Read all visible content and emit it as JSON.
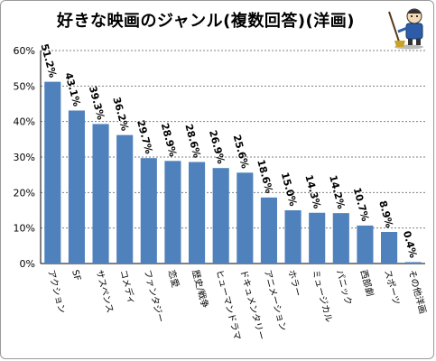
{
  "title": "好きな映画のジャンル(複数回答)(洋画)",
  "chart_data": {
    "type": "bar",
    "title": "好きな映画のジャンル(複数回答)(洋画)",
    "categories": [
      "アクション",
      "SF",
      "サスペンス",
      "コメディ",
      "ファンタジー",
      "恋愛",
      "歴史/戦争",
      "ヒューマンドラマ",
      "ドキュメンタリー",
      "アニメーション",
      "ホラー",
      "ミュージカル",
      "パニック",
      "西部劇",
      "スポーツ",
      "その他洋画"
    ],
    "values": [
      51.2,
      43.1,
      39.3,
      36.2,
      29.7,
      28.9,
      28.6,
      26.9,
      25.6,
      18.6,
      15.0,
      14.3,
      14.2,
      10.7,
      8.9,
      0.4
    ],
    "data_labels": [
      "51.2%",
      "43.1%",
      "39.3%",
      "36.2%",
      "29.7%",
      "28.9%",
      "28.6%",
      "26.9%",
      "25.6%",
      "18.6%",
      "15.0%",
      "14.3%",
      "14.2%",
      "10.7%",
      "8.9%",
      "0.4%"
    ],
    "yticks": [
      "0%",
      "10%",
      "20%",
      "30%",
      "40%",
      "50%",
      "60%"
    ],
    "ylim": [
      0,
      60
    ],
    "ystep": 10,
    "xlabel": "",
    "ylabel": "",
    "grid": true,
    "bar_color": "#4f81bd",
    "grid_color": "#7f7f7f"
  },
  "mascot_icon": "sweeper-mascot-icon"
}
